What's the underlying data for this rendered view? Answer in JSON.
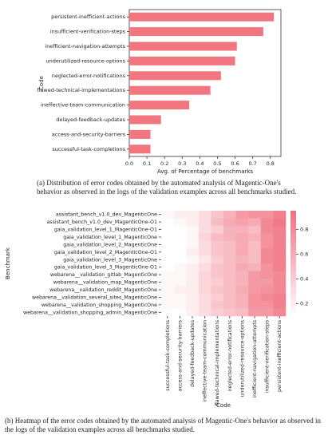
{
  "chart_data": [
    {
      "type": "barh",
      "categories": [
        "persistent-inefficient-actions",
        "insufficient-verification-steps",
        "inefficient-navigation-attempts",
        "underutilized-resource-options",
        "neglected-error-notifications",
        "flawed-technical-implementations",
        "ineffective-team-communication",
        "delayed-feedback-updates",
        "access-and-security-barriers",
        "successful-task-completions"
      ],
      "values": [
        0.82,
        0.76,
        0.61,
        0.6,
        0.52,
        0.46,
        0.34,
        0.18,
        0.12,
        0.12
      ],
      "color": "#f2767f",
      "xlim": [
        0,
        0.86
      ],
      "xticks": [
        {
          "value": 0,
          "label": "0.0"
        },
        0.1,
        0.2,
        0.3,
        0.4,
        0.5,
        0.6,
        0.7,
        0.8
      ],
      "xlabel": "Avg. of Percentage of benchmarks",
      "ylabel": "Code"
    },
    {
      "type": "heatmap",
      "x": [
        "successful-task-completions",
        "access-and-security-barriers",
        "delayed-feedback-updates",
        "ineffective-team-communication",
        "flawed-technical-implementations",
        "neglected-error-notifications",
        "underutilized-resource-options",
        "inefficient-navigation-attempts",
        "insufficient-verification-steps",
        "persistent-inefficient-actions"
      ],
      "y": [
        "assistant_bench_v1.0_dev_MagenticOne",
        "assistant_bench_v1.0_dev_MagenticOne-O1",
        "gaia_validation_level_1_MagenticOne-O1",
        "gaia_validation_level_1_MagenticOne",
        "gaia_validation_level_2_MagenticOne",
        "gaia_validation_level_2_MagenticOne-O1",
        "gaia_validation_level_3_MagenticOne",
        "gaia_validation_level_3_MagenticOne-O1",
        "webarena__validation_gitlab_MagenticOne",
        "webarena__validation_map_MagenticOne",
        "webarena__validation_reddit_MagenticOne",
        "webarena__validation_several_sites_MagenticOne",
        "webarena__validation_shopping_MagenticOne",
        "webarena__validation_shopping_admin_MagenticOne"
      ],
      "values": [
        [
          0.15,
          0.2,
          0.2,
          0.3,
          0.45,
          0.55,
          0.7,
          0.75,
          0.75,
          0.85
        ],
        [
          0.1,
          0.15,
          0.2,
          0.3,
          0.5,
          0.6,
          0.65,
          0.6,
          0.8,
          0.9
        ],
        [
          0.1,
          0.1,
          0.15,
          0.3,
          0.4,
          0.55,
          0.55,
          0.5,
          0.8,
          0.85
        ],
        [
          0.1,
          0.1,
          0.15,
          0.35,
          0.5,
          0.55,
          0.6,
          0.55,
          0.75,
          0.85
        ],
        [
          0.1,
          0.1,
          0.15,
          0.3,
          0.45,
          0.5,
          0.6,
          0.5,
          0.75,
          0.85
        ],
        [
          0.1,
          0.1,
          0.2,
          0.3,
          0.45,
          0.5,
          0.6,
          0.5,
          0.8,
          0.85
        ],
        [
          0.1,
          0.1,
          0.15,
          0.25,
          0.4,
          0.5,
          0.55,
          0.5,
          0.8,
          0.85
        ],
        [
          0.1,
          0.15,
          0.2,
          0.3,
          0.45,
          0.5,
          0.6,
          0.55,
          0.75,
          0.85
        ],
        [
          0.15,
          0.15,
          0.2,
          0.35,
          0.45,
          0.5,
          0.55,
          0.7,
          0.75,
          0.8
        ],
        [
          0.15,
          0.15,
          0.2,
          0.35,
          0.4,
          0.5,
          0.55,
          0.7,
          0.7,
          0.8
        ],
        [
          0.15,
          0.2,
          0.2,
          0.35,
          0.45,
          0.5,
          0.6,
          0.7,
          0.75,
          0.8
        ],
        [
          0.15,
          0.15,
          0.2,
          0.3,
          0.4,
          0.5,
          0.55,
          0.75,
          0.8,
          0.85
        ],
        [
          0.15,
          0.15,
          0.2,
          0.3,
          0.45,
          0.5,
          0.55,
          0.75,
          0.75,
          0.85
        ],
        [
          0.1,
          0.1,
          0.2,
          0.3,
          0.4,
          0.45,
          0.5,
          0.7,
          0.7,
          0.8
        ]
      ],
      "cmap": [
        "#ffffff",
        "#f07080"
      ],
      "clim": [
        0.1,
        0.95
      ],
      "cticks": [
        0.2,
        0.4,
        0.6,
        0.8
      ],
      "xlabel": "Code",
      "ylabel": "Benchmark"
    }
  ],
  "captions": [
    "(a) Distribution of error codes obtained by the automated analysis of Magentic-One's behavior as observed in the logs of the validation examples across all benchmarks studied.",
    "(b) Heatmap of the error codes obtained by the automated analysis of Magentic-One's behavior as observed in the logs of the validation examples across all benchmarks studied."
  ]
}
